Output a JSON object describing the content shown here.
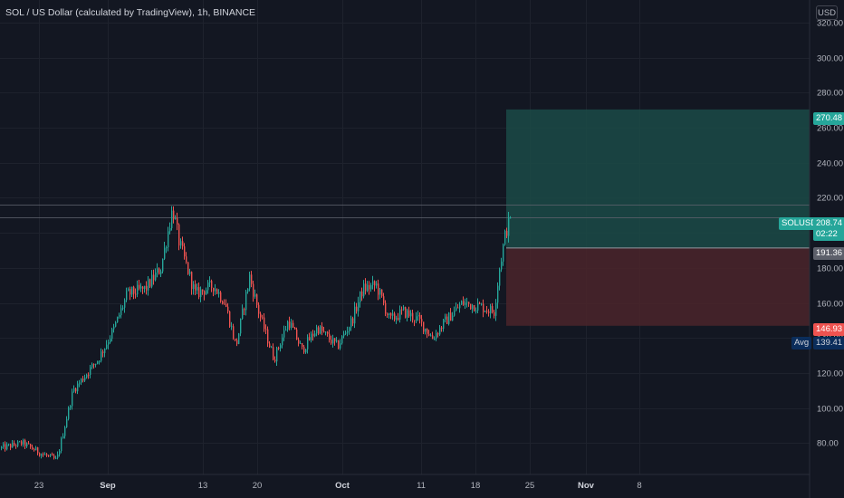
{
  "header": {
    "title": "SOL / US Dollar (calculated by TradingView), 1h, BINANCE",
    "currency_button": "USD"
  },
  "colors": {
    "background": "#131722",
    "grid": "#1e222d",
    "up": "#26a69a",
    "down": "#ef5350",
    "target_zone": "#1b4a46",
    "stop_zone": "#4b252a",
    "avg_tag": "#0b2d5b"
  },
  "markers": {
    "last_price": {
      "symbol": "SOLUSD",
      "price": "208.74",
      "countdown": "02:22"
    },
    "entry": "191.36",
    "target": "270.48",
    "stop": "146.93",
    "avg": {
      "label": "Avg",
      "value": "139.41"
    }
  },
  "chart_data": {
    "type": "candlestick",
    "title": "SOL / US Dollar (calculated by TradingView), 1h, BINANCE",
    "ylabel": "USD",
    "ylim": [
      62,
      333
    ],
    "grid": true,
    "y_ticks": [
      "320.00",
      "300.00",
      "280.00",
      "260.00",
      "240.00",
      "220.00",
      "200.00",
      "180.00",
      "160.00",
      "140.00",
      "120.00",
      "100.00",
      "80.00"
    ],
    "x_ticks": [
      {
        "label": "23",
        "bold": false
      },
      {
        "label": "Sep",
        "bold": true
      },
      {
        "label": "13",
        "bold": false
      },
      {
        "label": "20",
        "bold": false
      },
      {
        "label": "Oct",
        "bold": true
      },
      {
        "label": "11",
        "bold": false
      },
      {
        "label": "18",
        "bold": false
      },
      {
        "label": "25",
        "bold": false
      },
      {
        "label": "Nov",
        "bold": true
      },
      {
        "label": "8",
        "bold": false
      }
    ],
    "price_path": [
      {
        "t": "Aug 20",
        "price": 77
      },
      {
        "t": "Aug 24",
        "price": 80
      },
      {
        "t": "Aug 27",
        "price": 70
      },
      {
        "t": "Aug 30",
        "price": 110
      },
      {
        "t": "Sep 2",
        "price": 145
      },
      {
        "t": "Sep 6",
        "price": 165
      },
      {
        "t": "Sep 9",
        "price": 214
      },
      {
        "t": "Sep 10",
        "price": 195
      },
      {
        "t": "Sep 13",
        "price": 165
      },
      {
        "t": "Sep 17",
        "price": 175
      },
      {
        "t": "Sep 21",
        "price": 128
      },
      {
        "t": "Sep 24",
        "price": 140
      },
      {
        "t": "Sep 27",
        "price": 133
      },
      {
        "t": "Oct 2",
        "price": 168
      },
      {
        "t": "Oct 5",
        "price": 165
      },
      {
        "t": "Oct 8",
        "price": 148
      },
      {
        "t": "Oct 12",
        "price": 140
      },
      {
        "t": "Oct 16",
        "price": 155
      },
      {
        "t": "Oct 20",
        "price": 158
      },
      {
        "t": "Oct 22",
        "price": 190
      },
      {
        "t": "Oct 23",
        "price": 208.74
      }
    ],
    "last_price": 208.74,
    "position": {
      "entry": 191.36,
      "target": 270.48,
      "stop": 146.93,
      "avg": 139.41
    },
    "horizontal_lines": [
      208.74,
      216
    ]
  }
}
